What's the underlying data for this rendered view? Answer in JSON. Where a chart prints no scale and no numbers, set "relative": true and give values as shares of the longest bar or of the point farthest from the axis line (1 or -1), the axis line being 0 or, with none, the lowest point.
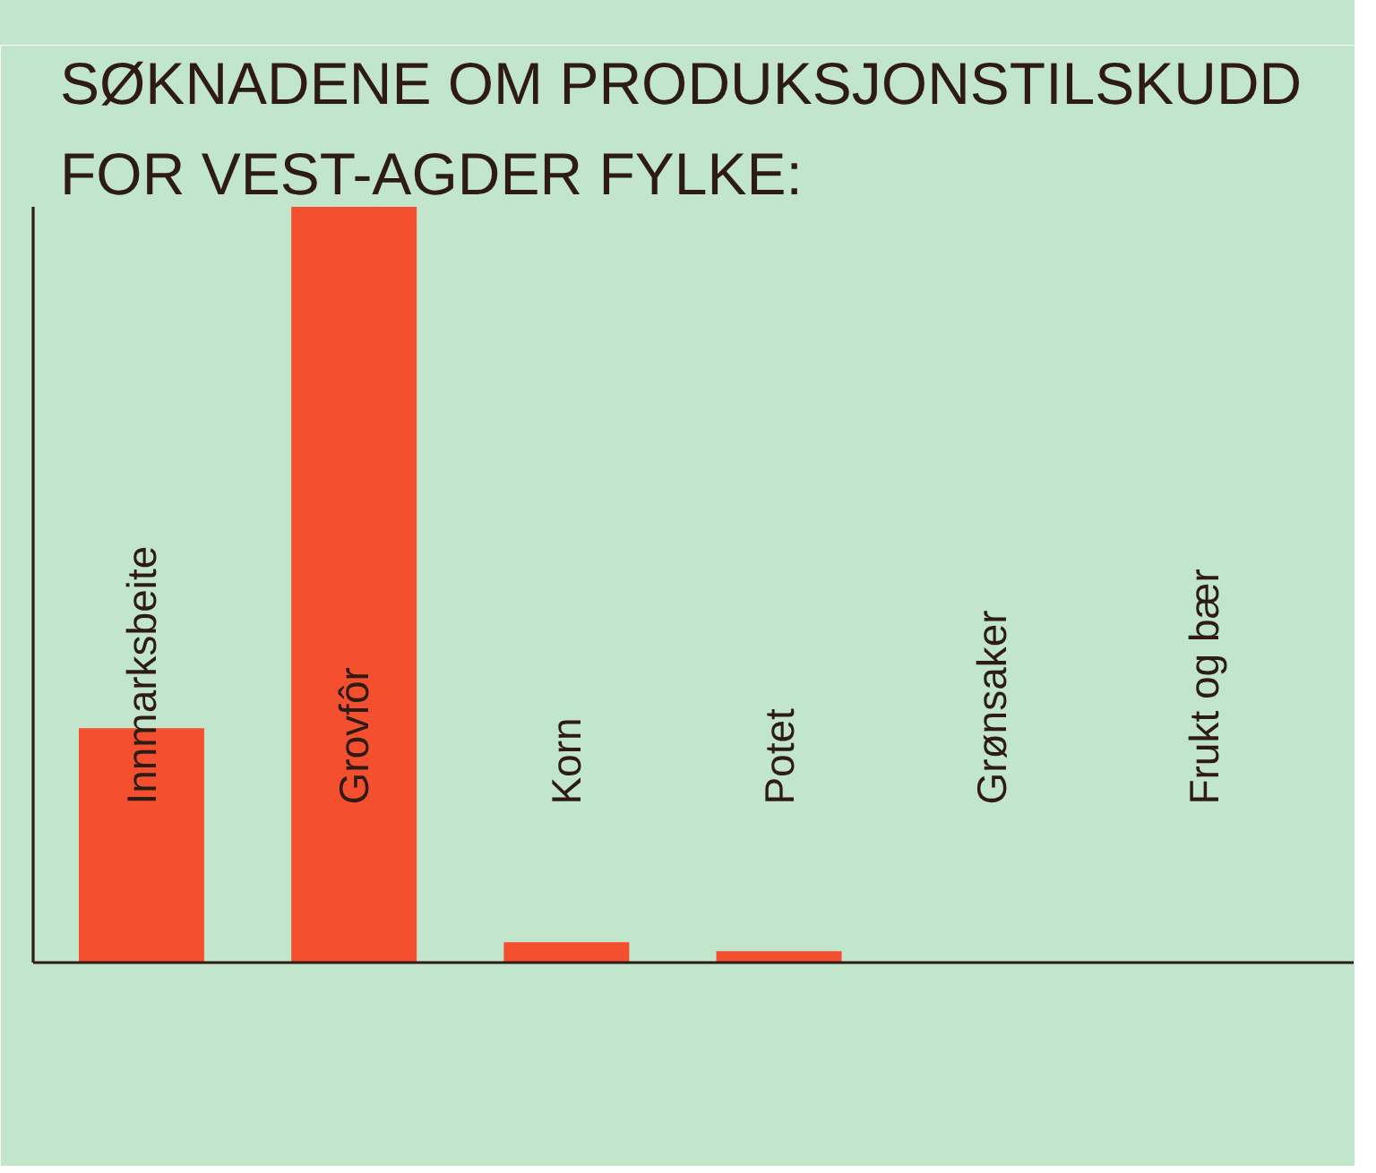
{
  "chart_data": {
    "type": "bar",
    "title": "SØKNADENE OM PRODUKSJONSTILSKUDD\nFOR VEST-AGDER FYLKE:",
    "categories": [
      "Innmarksbeite",
      "Grovfôr",
      "Korn",
      "Potet",
      "Grønsaker",
      "Frukt og bær"
    ],
    "values": [
      0.31,
      1,
      0.027,
      0.015,
      0,
      0
    ],
    "color": "#f44f2f",
    "relative": true
  }
}
